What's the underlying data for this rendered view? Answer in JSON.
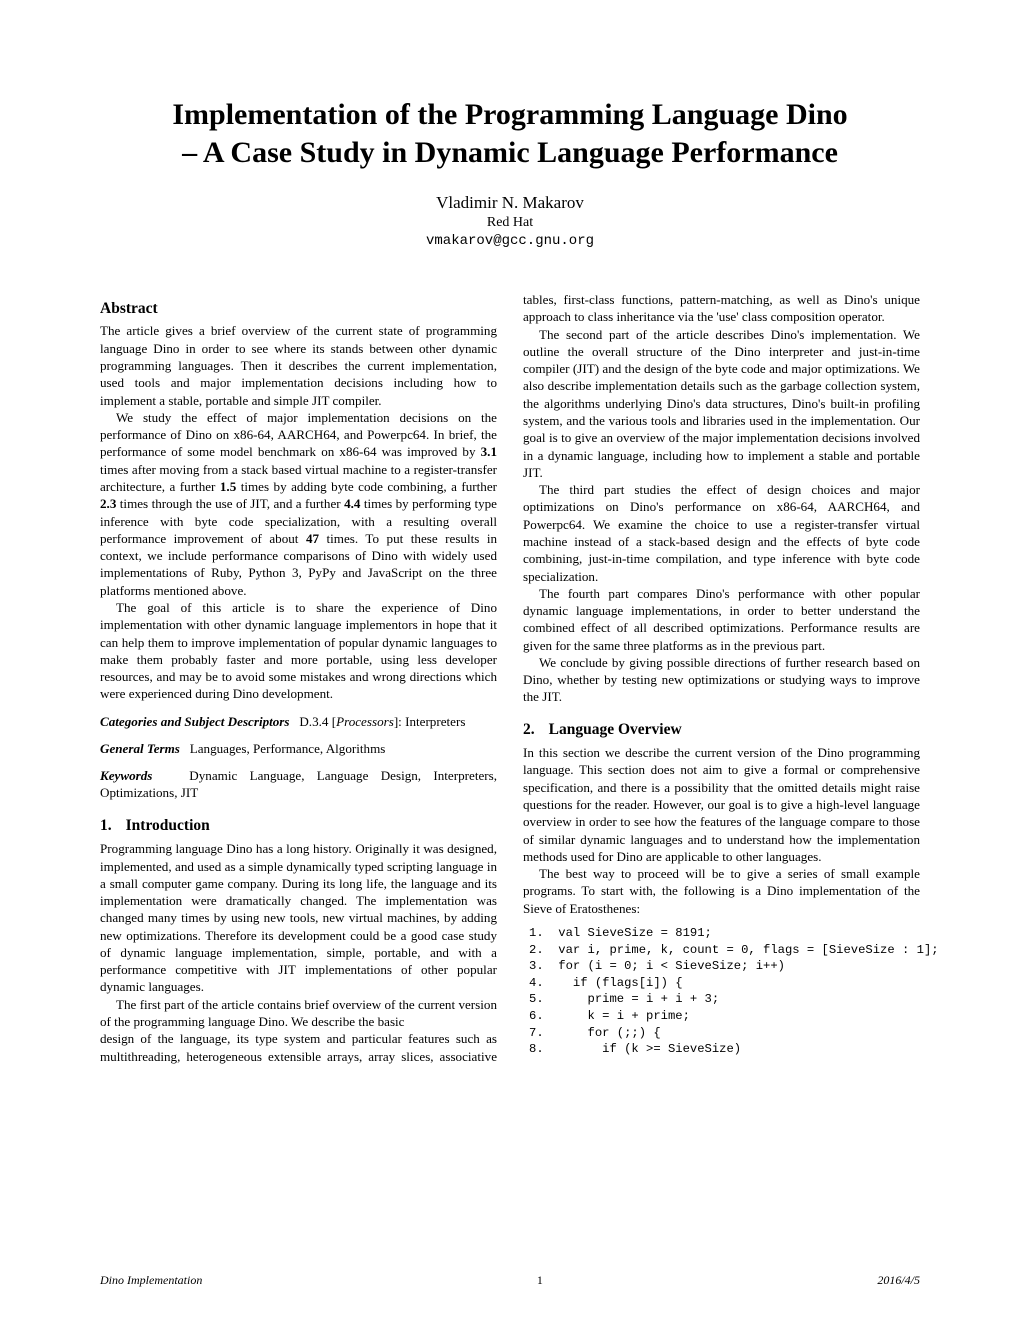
{
  "title_l1": "Implementation of the Programming Language Dino",
  "title_l2": "– A Case Study in Dynamic Language Performance",
  "author": "Vladimir N. Makarov",
  "affiliation": "Red Hat",
  "email": "vmakarov@gcc.gnu.org",
  "abstract_heading": "Abstract",
  "abstract_p1": "The article gives a brief overview of the current state of programming language Dino in order to see where its stands between other dynamic programming languages. Then it describes the current implementation, used tools and major implementation decisions including how to implement a stable, portable and simple JIT compiler.",
  "abstract_p2a": "We study the effect of major implementation decisions on the performance of Dino on x86-64, AARCH64, and Powerpc64. In brief, the performance of some model benchmark on x86-64 was improved by ",
  "b31": "3.1",
  "abstract_p2b": " times after moving from a stack based virtual machine to a register-transfer architecture, a further ",
  "b15": "1.5",
  "abstract_p2c": " times by adding byte code combining, a further ",
  "b23": "2.3",
  "abstract_p2d": " times through the use of JIT, and a further ",
  "b44": "4.4",
  "abstract_p2e": " times by performing type inference with byte code specialization, with a resulting overall performance improvement of about ",
  "b47": "47",
  "abstract_p2f": " times. To put these results in context, we include performance comparisons of Dino with widely used implementations of Ruby, Python 3, PyPy and JavaScript on the three platforms mentioned above.",
  "abstract_p3": "The goal of this article is to share the experience of Dino implementation with other dynamic language implementors in hope that it can help them to improve implementation of popular dynamic languages to make them probably faster and more portable, using less developer resources, and may be to avoid some mistakes and wrong directions which were experienced during Dino development.",
  "cats_label": "Categories and Subject Descriptors",
  "cats_code": "D.3.4 ",
  "cats_area": "Processors",
  "cats_tail": "]: Interpreters",
  "terms_label": "General Terms",
  "terms_val": "Languages, Performance, Algorithms",
  "keywords_label": "Keywords",
  "keywords_val": "Dynamic Language, Language Design, Interpreters, Optimizations, JIT",
  "s1_num": "1.",
  "s1_title": "Introduction",
  "s1_p1": "Programming language Dino has a long history. Originally it was designed, implemented, and used as a simple dynamically typed scripting language in a small computer game company. During its long life, the language and its implementation were dramatically changed. The implementation was changed many times by using new tools, new virtual machines, by adding new optimizations. Therefore its development could be a good case study of dynamic language implementation, simple, portable, and with a performance competitive with JIT implementations of other popular dynamic languages.",
  "s1_p2": "The first part of the article contains brief overview of the current version of the programming language Dino. We describe the basic",
  "col2_p1": "design of the language, its type system and particular features such as multithreading, heterogeneous extensible arrays, array slices, associative tables, first-class functions, pattern-matching, as well as Dino's unique approach to class inheritance via the 'use' class composition operator.",
  "col2_p2": "The second part of the article describes Dino's implementation. We outline the overall structure of the Dino interpreter and just-in-time compiler (JIT) and the design of the byte code and major optimizations. We also describe implementation details such as the garbage collection system, the algorithms underlying Dino's data structures, Dino's built-in profiling system, and the various tools and libraries used in the implementation. Our goal is to give an overview of the major implementation decisions involved in a dynamic language, including how to implement a stable and portable JIT.",
  "col2_p3": "The third part studies the effect of design choices and major optimizations on Dino's performance on x86-64, AARCH64, and Powerpc64. We examine the choice to use a register-transfer virtual machine instead of a stack-based design and the effects of byte code combining, just-in-time compilation, and type inference with byte code specialization.",
  "col2_p4": "The fourth part compares Dino's performance with other popular dynamic language implementations, in order to better understand the combined effect of all described optimizations. Performance results are given for the same three platforms as in the previous part.",
  "col2_p5": "We conclude by giving possible directions of further research based on Dino, whether by testing new optimizations or studying ways to improve the JIT.",
  "s2_num": "2.",
  "s2_title": "Language Overview",
  "s2_p1": "In this section we describe the current version of the Dino programming language. This section does not aim to give a formal or comprehensive specification, and there is a possibility that the omitted details might raise questions for the reader. However, our goal is to give a high-level language overview in order to see how the features of the language compare to those of similar dynamic languages and to understand how the implementation methods used for Dino are applicable to other languages.",
  "s2_p2": "The best way to proceed will be to give a series of small example programs. To start with, the following is a Dino implementation of the Sieve of Eratosthenes:",
  "code1": "1.  val SieveSize = 8191;",
  "code2": "2.  var i, prime, k, count = 0, flags = [SieveSize : 1];",
  "code3": "3.  for (i = 0; i < SieveSize; i++)",
  "code4": "4.    if (flags[i]) {",
  "code5": "5.      prime = i + i + 3;",
  "code6": "6.      k = i + prime;",
  "code7": "7.      for (;;) {",
  "code8": "8.        if (k >= SieveSize)",
  "footer_left": "Dino Implementation",
  "footer_center": "1",
  "footer_right": "2016/4/5"
}
